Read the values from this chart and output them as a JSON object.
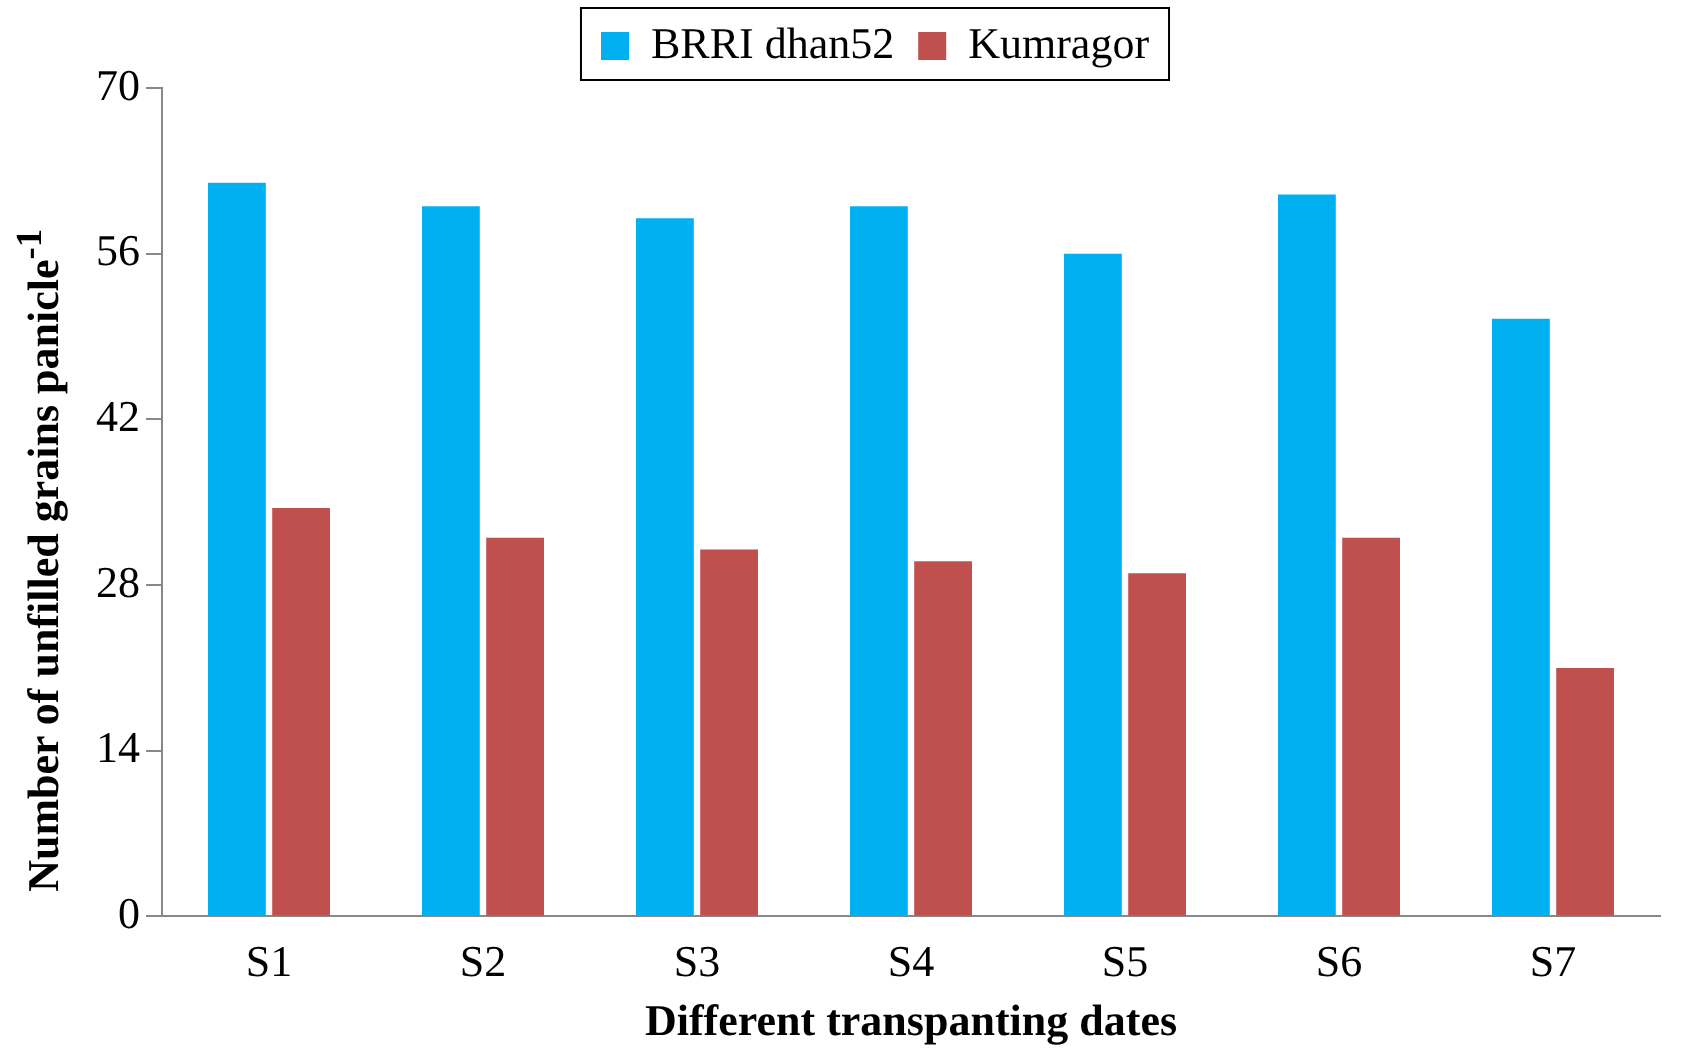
{
  "chart_data": {
    "type": "bar",
    "xlabel": "Different transpanting dates",
    "ylabel": "Number of unfilled grains panicle$^{-1}$",
    "categories": [
      "S1",
      "S2",
      "S3",
      "S4",
      "S5",
      "S6",
      "S7"
    ],
    "series": [
      {
        "name": "BRRI dhan52",
        "color": "#00b0f0",
        "values": [
          62,
          60,
          59,
          60,
          56,
          61,
          50.5
        ]
      },
      {
        "name": "Kumragor",
        "color": "#c0504d",
        "values": [
          34.5,
          32,
          31,
          30,
          29,
          32,
          21
        ]
      }
    ],
    "ylim": [
      0,
      70
    ],
    "yticks": [
      0,
      14,
      28,
      42,
      56,
      70
    ],
    "grid": false,
    "legend": "top"
  }
}
